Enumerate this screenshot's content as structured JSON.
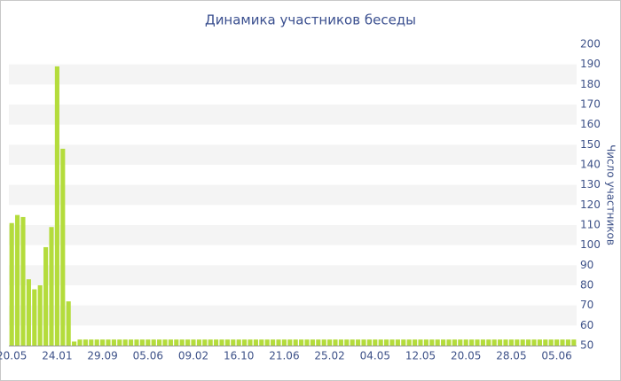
{
  "chart_data": {
    "type": "bar",
    "title": "Динамика участников беседы",
    "y_label": "Число участников",
    "color": "#b4dc3c",
    "grid": true,
    "categories": [
      "20.05",
      null,
      null,
      null,
      null,
      null,
      null,
      null,
      "24.01",
      null,
      null,
      null,
      null,
      null,
      null,
      null,
      "29.09",
      null,
      null,
      null,
      null,
      null,
      null,
      null,
      "05.06",
      null,
      null,
      null,
      null,
      null,
      null,
      null,
      "09.02",
      null,
      null,
      null,
      null,
      null,
      null,
      null,
      "16.10",
      null,
      null,
      null,
      null,
      null,
      null,
      null,
      "21.06",
      null,
      null,
      null,
      null,
      null,
      null,
      null,
      "25.02",
      null,
      null,
      null,
      null,
      null,
      null,
      null,
      "04.05",
      null,
      null,
      null,
      null,
      null,
      null,
      null,
      "12.05",
      null,
      null,
      null,
      null,
      null,
      null,
      null,
      "20.05",
      null,
      null,
      null,
      null,
      null,
      null,
      null,
      "28.05",
      null,
      null,
      null,
      null,
      null,
      null,
      null,
      "05.06",
      null,
      null,
      null
    ],
    "values": [
      111,
      115,
      114,
      83,
      78,
      80,
      99,
      109,
      189,
      148,
      72,
      52,
      53,
      53,
      53,
      53,
      53,
      53,
      53,
      53,
      53,
      53,
      53,
      53,
      53,
      53,
      53,
      53,
      53,
      53,
      53,
      53,
      53,
      53,
      53,
      53,
      53,
      53,
      53,
      53,
      53,
      53,
      53,
      53,
      53,
      53,
      53,
      53,
      53,
      53,
      53,
      53,
      53,
      53,
      53,
      53,
      53,
      53,
      53,
      53,
      53,
      53,
      53,
      53,
      53,
      53,
      53,
      53,
      53,
      53,
      53,
      53,
      53,
      53,
      53,
      53,
      53,
      53,
      53,
      53,
      53,
      53,
      53,
      53,
      53,
      53,
      53,
      53,
      53,
      53,
      53,
      53,
      53,
      53,
      53,
      53,
      53,
      53,
      53,
      53
    ],
    "ylim": [
      50,
      200
    ],
    "yticks": [
      50,
      60,
      70,
      80,
      90,
      100,
      110,
      120,
      130,
      140,
      150,
      160,
      170,
      180,
      190,
      200
    ]
  }
}
